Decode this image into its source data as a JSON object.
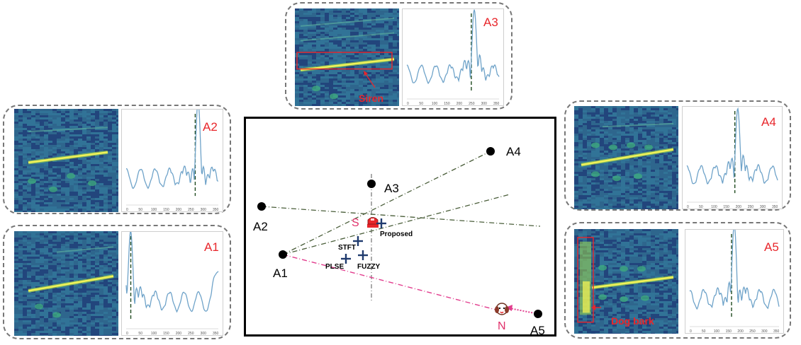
{
  "panels": [
    {
      "id": "A1",
      "label": "A1",
      "peak": 0.05,
      "axis_ticks": [
        "0",
        "50",
        "100",
        "150",
        "200",
        "250",
        "300",
        "350"
      ]
    },
    {
      "id": "A2",
      "label": "A2",
      "peak": 0.78,
      "axis_ticks": [
        "0",
        "50",
        "100",
        "150",
        "200",
        "250",
        "300",
        "350"
      ]
    },
    {
      "id": "A3",
      "label": "A3",
      "peak": 0.73,
      "axis_ticks": [
        "0",
        "50",
        "100",
        "150",
        "200",
        "250",
        "300",
        "350"
      ]
    },
    {
      "id": "A4",
      "label": "A4",
      "peak": 0.56,
      "axis_ticks": [
        "0",
        "50",
        "100",
        "150",
        "200",
        "250",
        "300",
        "350"
      ]
    },
    {
      "id": "A5",
      "label": "A5",
      "peak": 0.5,
      "axis_ticks": [
        "0",
        "50",
        "100",
        "150",
        "200",
        "250",
        "300",
        "350"
      ]
    }
  ],
  "events": {
    "siren": "Siren",
    "dog_bark": "Dog bark"
  },
  "map": {
    "mics": [
      "A1",
      "A2",
      "A3",
      "A4",
      "A5"
    ],
    "source_s": "S",
    "source_n": "N",
    "methods": [
      "Proposed",
      "STFT",
      "PLSE",
      "FUZZY"
    ]
  },
  "colors": {
    "accent": "#e8262b",
    "source_s": "#e0306a",
    "cross": "#1f3a6e",
    "curve": "#6fa3c9"
  }
}
